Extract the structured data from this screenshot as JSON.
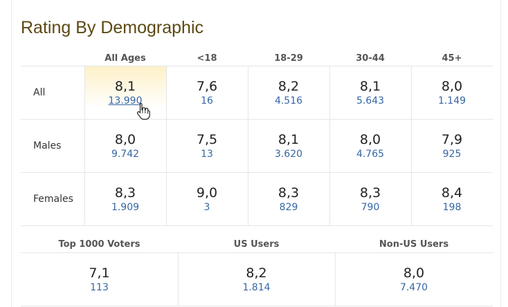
{
  "title": "Rating By Demographic",
  "age_headers": [
    "All Ages",
    "<18",
    "18-29",
    "30-44",
    "45+"
  ],
  "rows": [
    {
      "label": "All",
      "cells": [
        {
          "rating": "8,1",
          "votes": "13.990"
        },
        {
          "rating": "7,6",
          "votes": "16"
        },
        {
          "rating": "8,2",
          "votes": "4.516"
        },
        {
          "rating": "8,1",
          "votes": "5.643"
        },
        {
          "rating": "8,0",
          "votes": "1.149"
        }
      ]
    },
    {
      "label": "Males",
      "cells": [
        {
          "rating": "8,0",
          "votes": "9.742"
        },
        {
          "rating": "7,5",
          "votes": "13"
        },
        {
          "rating": "8,1",
          "votes": "3.620"
        },
        {
          "rating": "8,0",
          "votes": "4.765"
        },
        {
          "rating": "7,9",
          "votes": "925"
        }
      ]
    },
    {
      "label": "Females",
      "cells": [
        {
          "rating": "8,3",
          "votes": "1.909"
        },
        {
          "rating": "9,0",
          "votes": "3"
        },
        {
          "rating": "8,3",
          "votes": "829"
        },
        {
          "rating": "8,3",
          "votes": "790"
        },
        {
          "rating": "8,4",
          "votes": "198"
        }
      ]
    }
  ],
  "groups": [
    {
      "header": "Top 1000 Voters",
      "rating": "7,1",
      "votes": "113"
    },
    {
      "header": "US Users",
      "rating": "8,2",
      "votes": "1.814"
    },
    {
      "header": "Non-US Users",
      "rating": "8,0",
      "votes": "7.470"
    }
  ],
  "colors": {
    "title": "#5c4813",
    "votes_link": "#3566a5",
    "highlight": "#fdf1c8"
  },
  "cursor_icon": "hand-pointer-icon"
}
